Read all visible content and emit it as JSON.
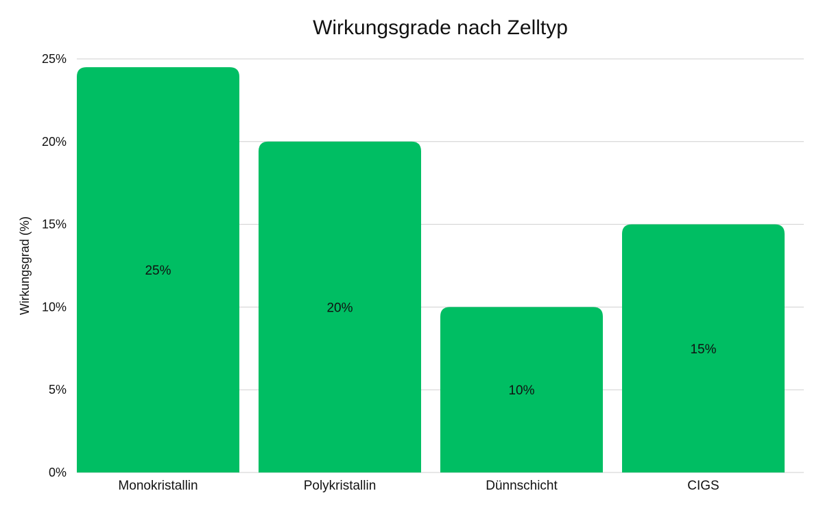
{
  "chart_data": {
    "type": "bar",
    "title": "Wirkungsgrade nach Zelltyp",
    "xlabel": "",
    "ylabel": "Wirkungsgrad (%)",
    "categories": [
      "Monokristallin",
      "Polykristallin",
      "Dünnschicht",
      "CIGS"
    ],
    "values": [
      24.5,
      20,
      10,
      15
    ],
    "data_labels": [
      "25%",
      "20%",
      "10%",
      "15%"
    ],
    "ylim": [
      0,
      25
    ],
    "yticks": [
      "0%",
      "5%",
      "10%",
      "15%",
      "20%",
      "25%"
    ],
    "ytick_values": [
      0,
      5,
      10,
      15,
      20,
      25
    ],
    "bar_color": "#00be63",
    "grid": true,
    "legend": "none"
  }
}
